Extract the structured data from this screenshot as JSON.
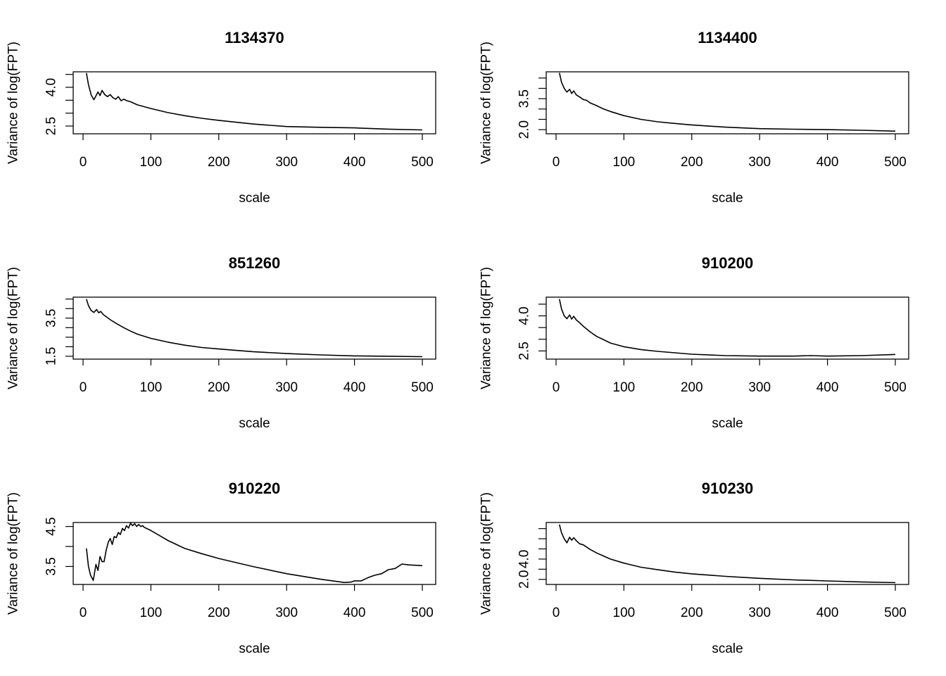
{
  "chart_data": [
    {
      "type": "line",
      "title": "1134370",
      "xlabel": "scale",
      "ylabel": "Variance of log(FPT)",
      "xlim": [
        0,
        500
      ],
      "ylim": [
        2.2,
        4.6
      ],
      "xticks": [
        "0",
        "100",
        "200",
        "300",
        "400",
        "500"
      ],
      "yticks": [
        {
          "value": 2.5,
          "label": "2.5",
          "labeled": true
        },
        {
          "value": 3.0,
          "label": "3.0",
          "labeled": false
        },
        {
          "value": 3.5,
          "label": "3.5",
          "labeled": false
        },
        {
          "value": 4.0,
          "label": "4.0",
          "labeled": true
        },
        {
          "value": 4.5,
          "label": "4.5",
          "labeled": false
        }
      ],
      "x": [
        5,
        8,
        12,
        16,
        20,
        22,
        25,
        28,
        32,
        36,
        40,
        44,
        48,
        52,
        56,
        60,
        65,
        70,
        80,
        100,
        125,
        150,
        175,
        200,
        250,
        300,
        350,
        400,
        450,
        500
      ],
      "y": [
        4.55,
        4.1,
        3.7,
        3.52,
        3.72,
        3.82,
        3.68,
        3.88,
        3.72,
        3.64,
        3.72,
        3.6,
        3.54,
        3.64,
        3.48,
        3.54,
        3.48,
        3.44,
        3.32,
        3.18,
        3.02,
        2.9,
        2.8,
        2.72,
        2.58,
        2.48,
        2.45,
        2.43,
        2.38,
        2.35
      ]
    },
    {
      "type": "line",
      "title": "1134400",
      "xlabel": "scale",
      "ylabel": "Variance of log(FPT)",
      "xlim": [
        0,
        500
      ],
      "ylim": [
        1.8,
        4.8
      ],
      "xticks": [
        "0",
        "100",
        "200",
        "300",
        "400",
        "500"
      ],
      "yticks": [
        {
          "value": 2.0,
          "label": "2.0",
          "labeled": true
        },
        {
          "value": 2.5,
          "label": "2.5",
          "labeled": false
        },
        {
          "value": 3.0,
          "label": "3.0",
          "labeled": false
        },
        {
          "value": 3.5,
          "label": "3.5",
          "labeled": true
        },
        {
          "value": 4.0,
          "label": "4.0",
          "labeled": false
        },
        {
          "value": 4.5,
          "label": "4.5",
          "labeled": false
        }
      ],
      "x": [
        5,
        8,
        12,
        16,
        20,
        23,
        26,
        30,
        35,
        40,
        45,
        50,
        60,
        70,
        80,
        100,
        125,
        150,
        175,
        200,
        250,
        300,
        350,
        400,
        450,
        500
      ],
      "y": [
        4.75,
        4.3,
        4.0,
        3.82,
        3.95,
        3.75,
        3.88,
        3.68,
        3.58,
        3.46,
        3.42,
        3.3,
        3.16,
        3.0,
        2.88,
        2.68,
        2.5,
        2.38,
        2.3,
        2.23,
        2.12,
        2.05,
        2.02,
        2.0,
        1.97,
        1.93
      ]
    },
    {
      "type": "line",
      "title": "851260",
      "xlabel": "scale",
      "ylabel": "Variance of log(FPT)",
      "xlim": [
        0,
        500
      ],
      "ylim": [
        1.35,
        4.6
      ],
      "xticks": [
        "0",
        "100",
        "200",
        "300",
        "400",
        "500"
      ],
      "yticks": [
        {
          "value": 1.5,
          "label": "1.5",
          "labeled": true
        },
        {
          "value": 2.0,
          "label": "2.0",
          "labeled": false
        },
        {
          "value": 2.5,
          "label": "2.5",
          "labeled": false
        },
        {
          "value": 3.0,
          "label": "3.0",
          "labeled": false
        },
        {
          "value": 3.5,
          "label": "3.5",
          "labeled": true
        },
        {
          "value": 4.0,
          "label": "4.0",
          "labeled": false
        },
        {
          "value": 4.5,
          "label": "4.5",
          "labeled": false
        }
      ],
      "x": [
        5,
        8,
        12,
        16,
        20,
        23,
        26,
        30,
        35,
        40,
        50,
        60,
        70,
        80,
        100,
        125,
        150,
        175,
        200,
        250,
        300,
        350,
        400,
        450,
        500
      ],
      "y": [
        4.5,
        4.15,
        3.9,
        3.8,
        3.95,
        3.78,
        3.85,
        3.68,
        3.55,
        3.42,
        3.2,
        3.0,
        2.82,
        2.66,
        2.44,
        2.24,
        2.08,
        1.96,
        1.88,
        1.74,
        1.64,
        1.57,
        1.52,
        1.5,
        1.48
      ]
    },
    {
      "type": "line",
      "title": "910200",
      "xlabel": "scale",
      "ylabel": "Variance of log(FPT)",
      "xlim": [
        0,
        500
      ],
      "ylim": [
        2.15,
        4.8
      ],
      "xticks": [
        "0",
        "100",
        "200",
        "300",
        "400",
        "500"
      ],
      "yticks": [
        {
          "value": 2.5,
          "label": "2.5",
          "labeled": true
        },
        {
          "value": 3.0,
          "label": "3.0",
          "labeled": false
        },
        {
          "value": 3.5,
          "label": "3.5",
          "labeled": false
        },
        {
          "value": 4.0,
          "label": "4.0",
          "labeled": true
        },
        {
          "value": 4.5,
          "label": "4.5",
          "labeled": false
        }
      ],
      "x": [
        5,
        8,
        12,
        16,
        20,
        23,
        26,
        30,
        35,
        40,
        50,
        60,
        70,
        80,
        100,
        125,
        150,
        175,
        200,
        250,
        300,
        325,
        350,
        375,
        400,
        450,
        500
      ],
      "y": [
        4.72,
        4.3,
        4.0,
        3.88,
        4.04,
        3.86,
        3.98,
        3.82,
        3.7,
        3.56,
        3.32,
        3.12,
        2.98,
        2.84,
        2.68,
        2.56,
        2.48,
        2.42,
        2.36,
        2.3,
        2.28,
        2.28,
        2.28,
        2.3,
        2.28,
        2.3,
        2.35
      ]
    },
    {
      "type": "line",
      "title": "910220",
      "xlabel": "scale",
      "ylabel": "Variance of log(FPT)",
      "xlim": [
        0,
        500
      ],
      "ylim": [
        3.05,
        4.6
      ],
      "xticks": [
        "0",
        "100",
        "200",
        "300",
        "400",
        "500"
      ],
      "yticks": [
        {
          "value": 3.5,
          "label": "3.5",
          "labeled": true
        },
        {
          "value": 4.0,
          "label": "4.0",
          "labeled": false
        },
        {
          "value": 4.5,
          "label": "4.5",
          "labeled": true
        }
      ],
      "x": [
        5,
        8,
        11,
        15,
        19,
        22,
        25,
        28,
        31,
        34,
        37,
        40,
        43,
        46,
        49,
        52,
        55,
        58,
        61,
        64,
        67,
        70,
        73,
        76,
        79,
        82,
        85,
        88,
        90,
        100,
        125,
        150,
        175,
        200,
        250,
        300,
        350,
        385,
        395,
        400,
        410,
        420,
        430,
        440,
        450,
        460,
        470,
        480,
        500
      ],
      "y": [
        3.95,
        3.5,
        3.28,
        3.15,
        3.55,
        3.4,
        3.75,
        3.62,
        3.62,
        3.9,
        4.1,
        4.2,
        4.05,
        4.25,
        4.22,
        4.35,
        4.3,
        4.45,
        4.4,
        4.52,
        4.46,
        4.58,
        4.52,
        4.57,
        4.5,
        4.55,
        4.5,
        4.52,
        4.48,
        4.4,
        4.15,
        3.95,
        3.82,
        3.7,
        3.5,
        3.32,
        3.18,
        3.1,
        3.11,
        3.14,
        3.14,
        3.22,
        3.28,
        3.32,
        3.42,
        3.45,
        3.56,
        3.54,
        3.52
      ]
    },
    {
      "type": "line",
      "title": "910230",
      "xlabel": "scale",
      "ylabel": "Variance of log(FPT)",
      "xlim": [
        0,
        500
      ],
      "ylim": [
        1.5,
        7.6
      ],
      "xticks": [
        "0",
        "100",
        "200",
        "300",
        "400",
        "500"
      ],
      "yticks": [
        {
          "value": 2.0,
          "label": "2.0",
          "labeled": true
        },
        {
          "value": 3.0,
          "label": "3.0",
          "labeled": false
        },
        {
          "value": 4.0,
          "label": "4.0",
          "labeled": true
        },
        {
          "value": 5.0,
          "label": "5.0",
          "labeled": false
        },
        {
          "value": 6.0,
          "label": "6.0",
          "labeled": false
        },
        {
          "value": 7.0,
          "label": "7.0",
          "labeled": false
        }
      ],
      "x": [
        5,
        8,
        12,
        16,
        20,
        23,
        26,
        30,
        35,
        40,
        50,
        60,
        70,
        80,
        100,
        125,
        150,
        175,
        200,
        250,
        300,
        350,
        400,
        450,
        500
      ],
      "y": [
        7.4,
        6.6,
        6.0,
        5.6,
        6.15,
        5.85,
        6.1,
        5.8,
        5.5,
        5.4,
        4.95,
        4.6,
        4.3,
        4.0,
        3.6,
        3.2,
        2.95,
        2.72,
        2.55,
        2.3,
        2.1,
        1.95,
        1.85,
        1.75,
        1.68
      ]
    }
  ]
}
